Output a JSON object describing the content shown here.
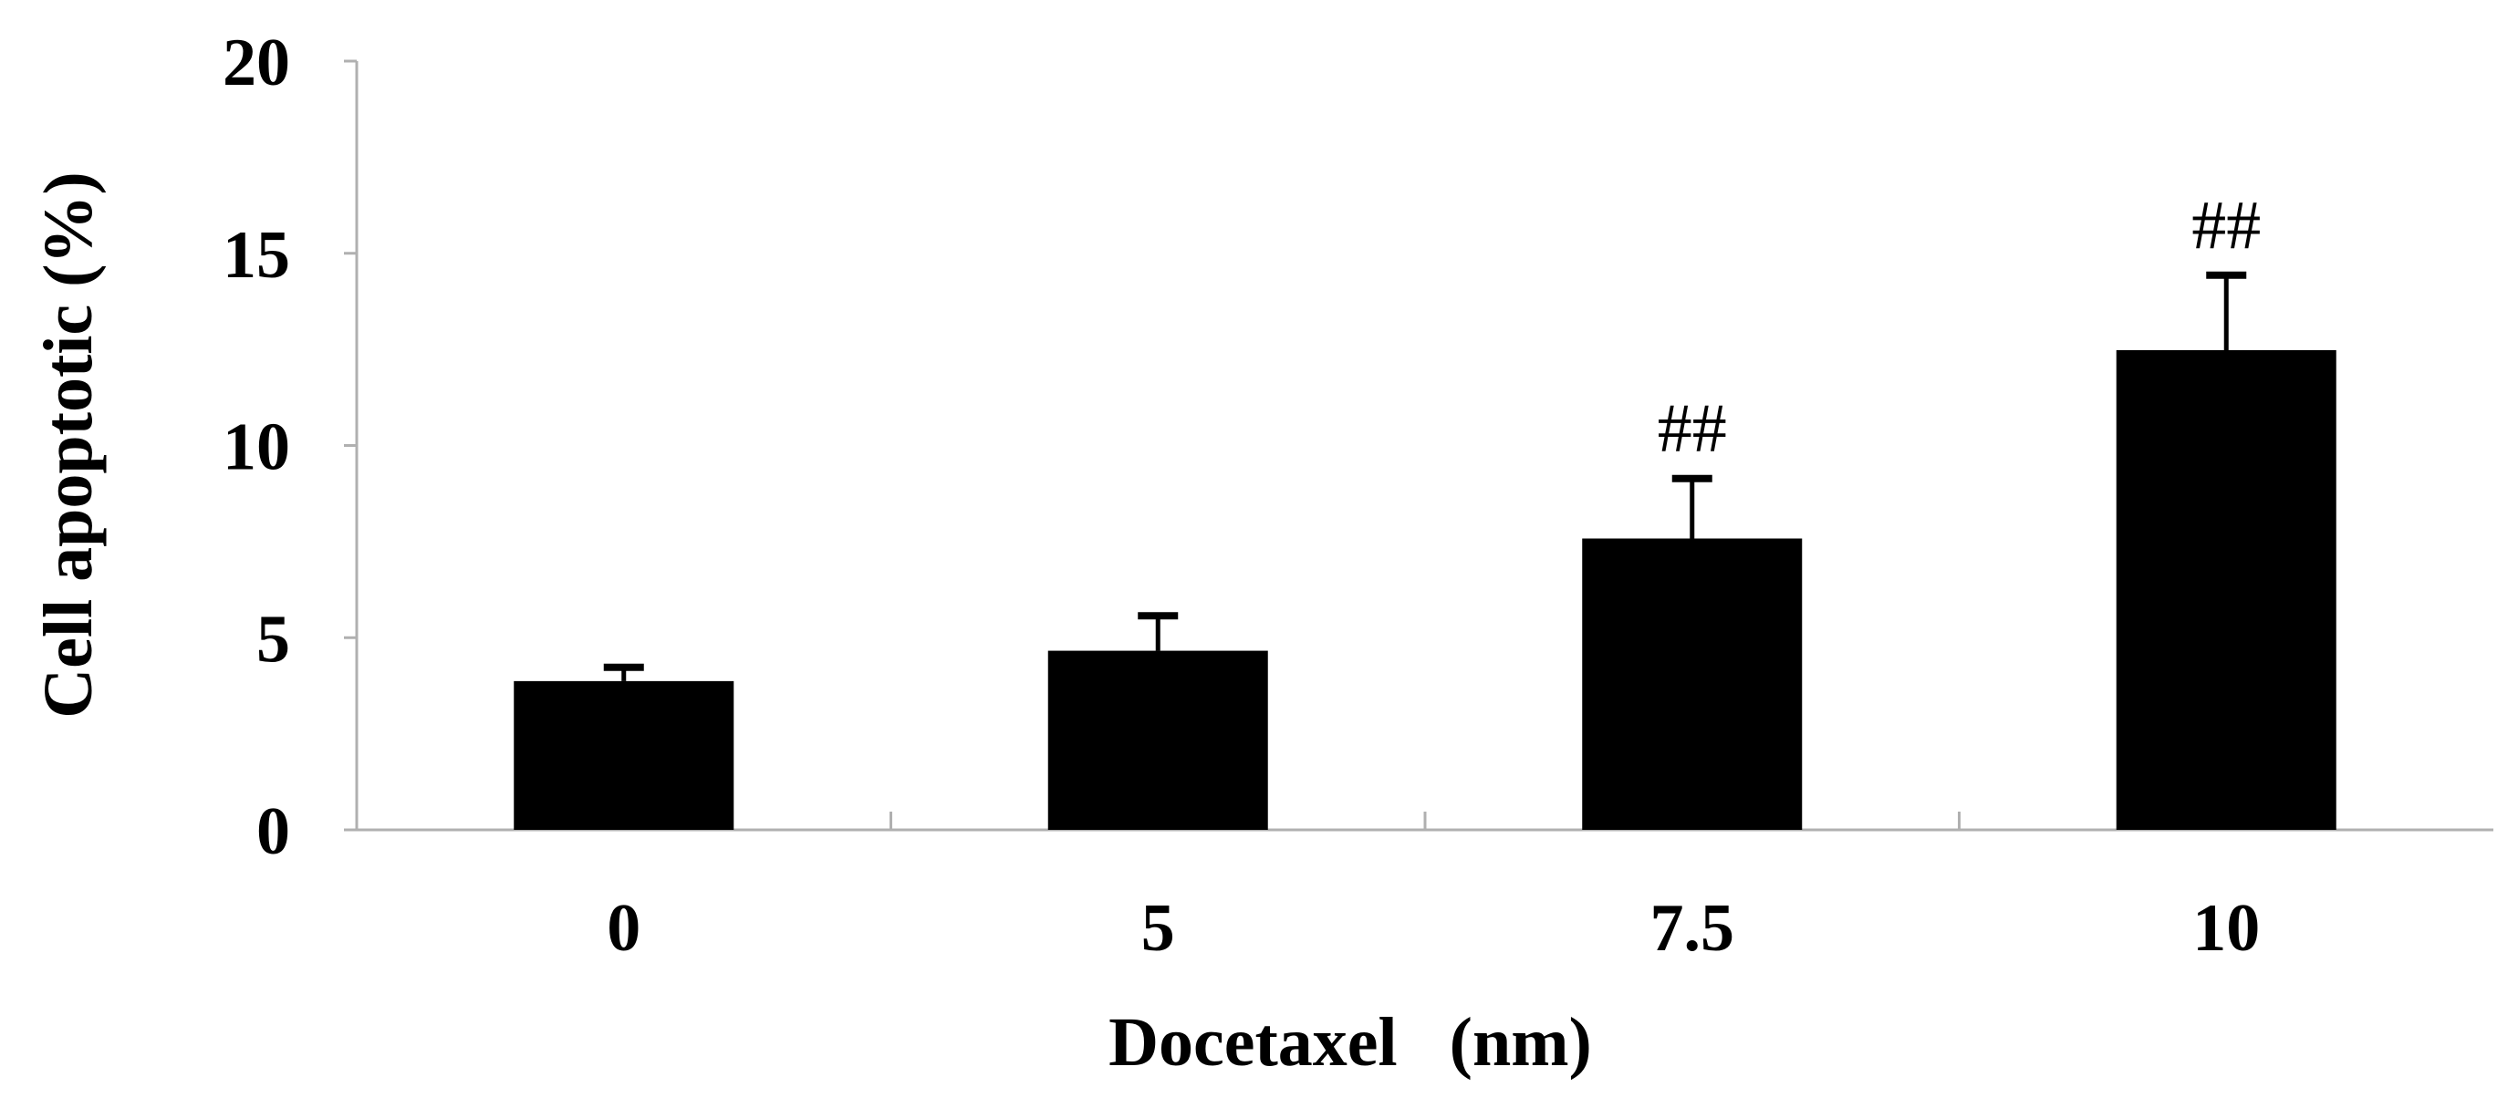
{
  "chart_data": {
    "type": "bar",
    "title": "",
    "xlabel": "Docetaxel   (nm)",
    "ylabel": "Cell apoptotic (%)",
    "categories": [
      "0",
      "5",
      "7.5",
      "10"
    ],
    "values": [
      3.87,
      4.66,
      7.58,
      12.48
    ],
    "error_upper": [
      4.23,
      5.57,
      9.14,
      14.43
    ],
    "annotations": [
      "",
      "",
      "##",
      "##"
    ],
    "ylim": [
      0,
      20
    ],
    "yticks": [
      "0",
      "5",
      "10",
      "15",
      "20"
    ],
    "grid": false,
    "bar_color": "#000000"
  }
}
